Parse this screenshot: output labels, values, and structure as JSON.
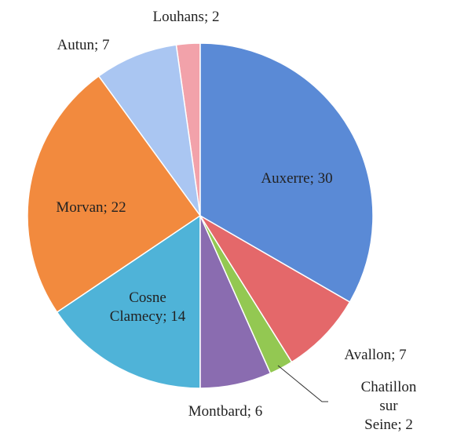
{
  "chart_data": {
    "type": "pie",
    "values": [
      30,
      7,
      2,
      6,
      14,
      22,
      7,
      2
    ],
    "value_labels": [
      "Auxerre;  30",
      "Avallon; 7",
      "Chatillon sur\nSeine; 2",
      "Montbard;  6",
      "Cosne\nClamecy; 14",
      "Morvan;  22",
      "Autun;  7",
      "Louhans;  2"
    ],
    "colors": [
      "#5a8ad6",
      "#e4686a",
      "#93c852",
      "#8a6cb0",
      "#4fb3d8",
      "#f28a3e",
      "#aac6f2",
      "#f2a2aa"
    ]
  }
}
